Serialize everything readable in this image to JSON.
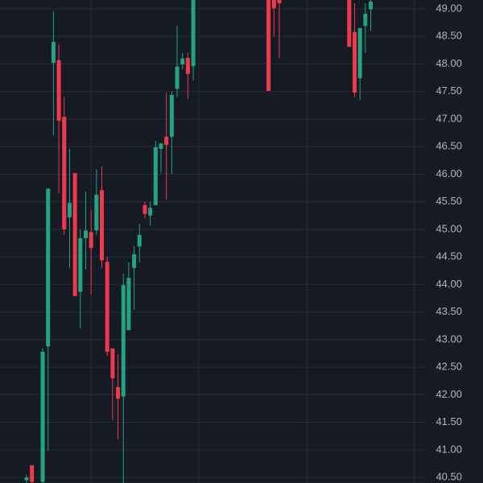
{
  "chart_data": {
    "type": "candlestick",
    "up_color": "#22a384",
    "down_color": "#f0394b",
    "grid": true,
    "ylim": [
      40.4,
      49.16
    ],
    "yticks": [
      {
        "value": 40.5,
        "label": "40.50"
      },
      {
        "value": 41,
        "label": "41.00"
      },
      {
        "value": 41.5,
        "label": "41.50"
      },
      {
        "value": 42,
        "label": "42.00"
      },
      {
        "value": 42.5,
        "label": "42.50"
      },
      {
        "value": 43,
        "label": "43.00"
      },
      {
        "value": 43.5,
        "label": "43.50"
      },
      {
        "value": 44,
        "label": "44.00"
      },
      {
        "value": 44.5,
        "label": "44.50"
      },
      {
        "value": 45,
        "label": "45.00"
      },
      {
        "value": 45.5,
        "label": "45.50"
      },
      {
        "value": 46,
        "label": "46.00"
      },
      {
        "value": 46.5,
        "label": "46.50"
      },
      {
        "value": 47,
        "label": "47.00"
      },
      {
        "value": 47.5,
        "label": "47.50"
      },
      {
        "value": 48,
        "label": "48.00"
      },
      {
        "value": 48.5,
        "label": "48.50"
      },
      {
        "value": 49,
        "label": "49.00"
      }
    ],
    "open": [
      40.45,
      40.72,
      null,
      40.42,
      42.88,
      48.02,
      48.07,
      47.04,
      45.22,
      46.02,
      43.87,
      44.84,
      44.95,
      44.98,
      45.71,
      44.41,
      42.84,
      42.14,
      41.97,
      43.17,
      44.3,
      44.69,
      45.44,
      45.25,
      45.44,
      46.46,
      46.68,
      46.68,
      47.55,
      47.99,
      48.11,
      47.96,
      null,
      null,
      null,
      null,
      null,
      null,
      null,
      null,
      null,
      null,
      null,
      null,
      null,
      49.5,
      49.3,
      49.2,
      null,
      null,
      null,
      null,
      null,
      null,
      null,
      null,
      null,
      null,
      null,
      null,
      49.5,
      48.58,
      47.74,
      48.69,
      48.99
    ],
    "high": [
      40.55,
      40.72,
      null,
      42.84,
      45.74,
      48.95,
      48.35,
      47.4,
      46.46,
      46.02,
      45.0,
      45.68,
      45.35,
      46.09,
      46.14,
      44.5,
      42.84,
      42.73,
      44.2,
      44.4,
      44.7,
      45.1,
      45.5,
      45.5,
      46.6,
      46.56,
      47.48,
      47.5,
      48.69,
      48.2,
      48.2,
      49.5,
      null,
      null,
      null,
      null,
      null,
      null,
      null,
      null,
      null,
      null,
      null,
      null,
      null,
      49.6,
      49.4,
      49.3,
      null,
      null,
      null,
      null,
      null,
      null,
      null,
      null,
      null,
      null,
      null,
      null,
      49.6,
      49.1,
      48.65,
      49.1,
      49.2
    ],
    "low": [
      40.4,
      40.4,
      null,
      40.4,
      40.98,
      46.7,
      45.66,
      44.9,
      44.3,
      43.79,
      43.2,
      44.27,
      43.82,
      44.9,
      44.3,
      42.7,
      41.54,
      41.2,
      40.4,
      43.17,
      43.54,
      44.4,
      45.2,
      45.07,
      45.44,
      46.02,
      45.54,
      46.0,
      47.4,
      47.9,
      47.36,
      47.7,
      null,
      null,
      null,
      null,
      null,
      null,
      null,
      null,
      null,
      null,
      null,
      null,
      null,
      47.51,
      48.5,
      48.1,
      null,
      null,
      null,
      null,
      null,
      null,
      null,
      null,
      null,
      null,
      null,
      null,
      48.31,
      47.4,
      47.35,
      48.2,
      48.6
    ],
    "close": [
      40.5,
      40.42,
      null,
      42.78,
      45.74,
      48.4,
      46.97,
      45.0,
      45.48,
      43.79,
      44.84,
      44.98,
      44.66,
      45.63,
      44.44,
      42.78,
      42.3,
      41.93,
      43.99,
      44.12,
      44.55,
      44.9,
      45.28,
      45.39,
      46.49,
      46.56,
      46.53,
      47.44,
      47.95,
      48.1,
      47.82,
      49.3,
      null,
      null,
      null,
      null,
      null,
      null,
      null,
      null,
      null,
      null,
      null,
      null,
      null,
      47.51,
      49.01,
      49.1,
      null,
      null,
      null,
      null,
      null,
      null,
      null,
      null,
      null,
      null,
      null,
      null,
      48.31,
      47.48,
      48.65,
      48.91,
      49.13
    ]
  }
}
